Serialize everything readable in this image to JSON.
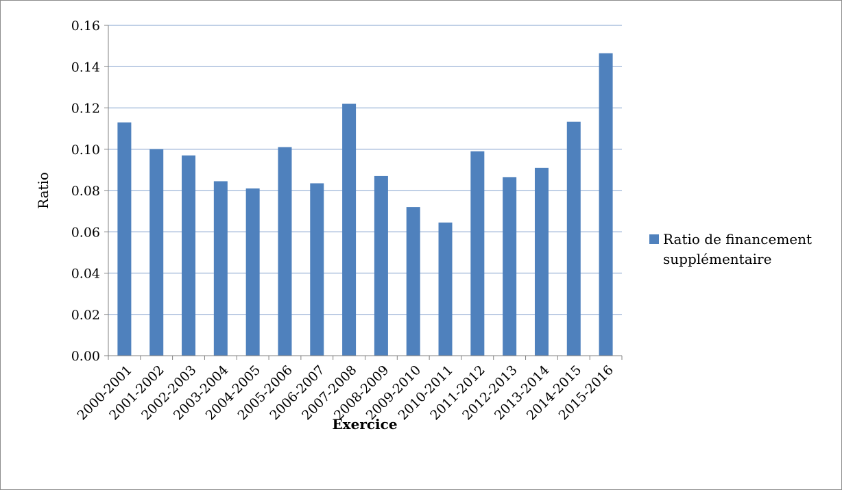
{
  "chart_data": {
    "type": "bar",
    "categories": [
      "2000-2001",
      "2001-2002",
      "2002-2003",
      "2003-2004",
      "2004-2005",
      "2005-2006",
      "2006-2007",
      "2007-2008",
      "2008-2009",
      "2009-2010",
      "2010-2011",
      "2011-2012",
      "2012-2013",
      "2013-2014",
      "2014-2015",
      "2015-2016"
    ],
    "series": [
      {
        "name": "Ratio de financement supplémentaire",
        "color": "#4f81bd",
        "values": [
          0.113,
          0.1,
          0.097,
          0.0845,
          0.081,
          0.101,
          0.0835,
          0.122,
          0.087,
          0.072,
          0.0645,
          0.099,
          0.0865,
          0.091,
          0.1133,
          0.1465
        ]
      }
    ],
    "xlabel": "Exercice",
    "ylabel": "Ratio",
    "ylim": [
      0,
      0.16
    ],
    "yticks": [
      "0.00",
      "0.02",
      "0.04",
      "0.06",
      "0.08",
      "0.10",
      "0.12",
      "0.14",
      "0.16"
    ],
    "grid": true,
    "gridColor": "#9bb3d6",
    "legend": {
      "placement": "right",
      "lines": [
        "Ratio de financement",
        "supplémentaire"
      ]
    }
  }
}
